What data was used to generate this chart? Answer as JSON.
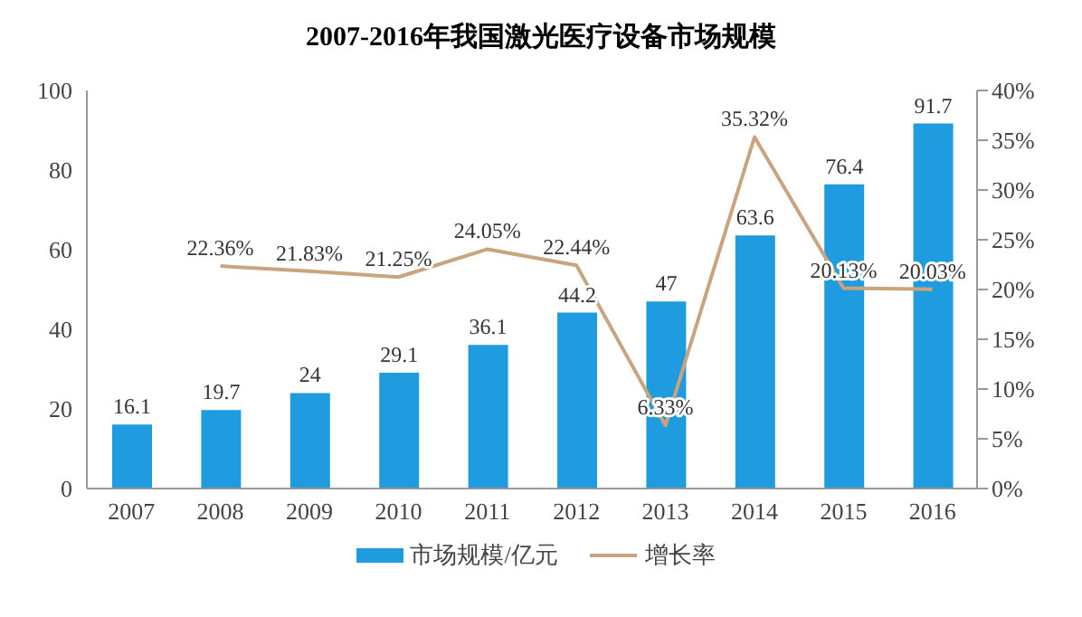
{
  "chart_data": {
    "type": "bar",
    "title": "2007-2016年我国激光医疗设备市场规模",
    "categories": [
      "2007",
      "2008",
      "2009",
      "2010",
      "2011",
      "2012",
      "2013",
      "2014",
      "2015",
      "2016"
    ],
    "series": [
      {
        "name": "市场规模/亿元",
        "color": "#1f9be0",
        "values": [
          16.1,
          19.7,
          24,
          29.1,
          36.1,
          44.2,
          47,
          63.6,
          76.4,
          91.7
        ],
        "value_labels": [
          "16.1",
          "19.7",
          "24",
          "29.1",
          "36.1",
          "44.2",
          "47",
          "63.6",
          "76.4",
          "91.7"
        ]
      },
      {
        "name": "增长率",
        "type": "line",
        "axis": "y2",
        "color": "#c9a47e",
        "values": [
          null,
          22.36,
          21.83,
          21.25,
          24.05,
          22.44,
          6.33,
          35.32,
          20.13,
          20.03
        ],
        "value_labels": [
          null,
          "22.36%",
          "21.83%",
          "21.25%",
          "24.05%",
          "22.44%",
          "6.33%",
          "35.32%",
          "20.13%",
          "20.03%"
        ]
      }
    ],
    "ylim": [
      0,
      100
    ],
    "yticks": [
      0,
      20,
      40,
      60,
      80,
      100
    ],
    "y2lim": [
      0,
      40
    ],
    "y2ticks": [
      {
        "value": 0,
        "label": "0%"
      },
      {
        "value": 5,
        "label": "5%"
      },
      {
        "value": 10,
        "label": "10%"
      },
      {
        "value": 15,
        "label": "15%"
      },
      {
        "value": 20,
        "label": "20%"
      },
      {
        "value": 25,
        "label": "25%"
      },
      {
        "value": 30,
        "label": "30%"
      },
      {
        "value": 35,
        "label": "35%"
      },
      {
        "value": 40,
        "label": "40%"
      }
    ],
    "legend": "bottom",
    "marker": "none",
    "grid": false
  }
}
